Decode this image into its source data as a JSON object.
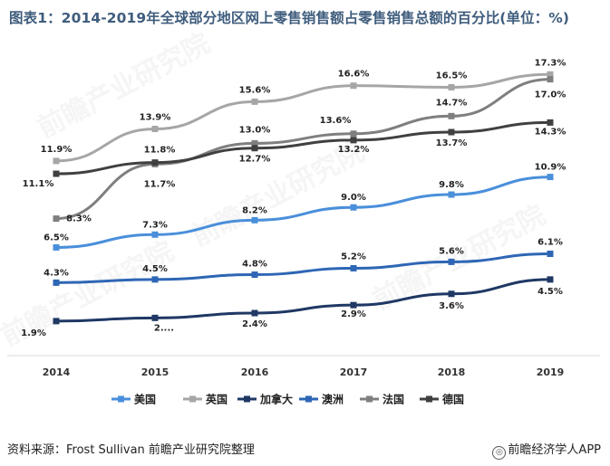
{
  "title": "图表1：2014-2019年全球部分地区网上零售销售额占零售销售总额的百分比(单位：%)",
  "source": "资料来源：Frost Sullivan 前瞻产业研究院整理",
  "brand": "前瞻经济学人APP",
  "brand_icon": "qianzhan-logo-icon",
  "watermark_text": "前瞻产业研究院",
  "chart_data": {
    "type": "line",
    "title": "图表1：2014-2019年全球部分地区网上零售销售额占零售销售总额的百分比(单位：%)",
    "x": [
      "2014",
      "2015",
      "2016",
      "2017",
      "2018",
      "2019"
    ],
    "ylim": [
      0,
      20
    ],
    "grid": false,
    "legend_position": "bottom",
    "series": [
      {
        "name": "美国",
        "color": "#4a8fdb",
        "values": [
          6.5,
          7.3,
          8.2,
          9.0,
          9.8,
          10.9
        ],
        "labels": [
          "6.5%",
          "7.3%",
          "8.2%",
          "9.0%",
          "9.8%",
          "10.9%"
        ]
      },
      {
        "name": "英国",
        "color": "#a6a6a6",
        "values": [
          11.9,
          13.9,
          15.6,
          16.6,
          16.5,
          17.3
        ],
        "labels": [
          "11.9%",
          "13.9%",
          "15.6%",
          "16.6%",
          "16.5%",
          "17.3%"
        ]
      },
      {
        "name": "加拿大",
        "color": "#1f3864",
        "values": [
          1.9,
          2.1,
          2.4,
          2.9,
          3.6,
          4.5
        ],
        "labels": [
          "1.9%",
          "2....",
          "2.4%",
          "2.9%",
          "3.6%",
          "4.5%"
        ]
      },
      {
        "name": "澳洲",
        "color": "#2e66b5",
        "values": [
          4.3,
          4.5,
          4.8,
          5.2,
          5.6,
          6.1
        ],
        "labels": [
          "4.3%",
          "4.5%",
          "4.8%",
          "5.2%",
          "5.6%",
          "6.1%"
        ]
      },
      {
        "name": "法国",
        "color": "#7f7f7f",
        "values": [
          8.3,
          11.7,
          13.0,
          13.6,
          14.7,
          17.0
        ],
        "labels": [
          "8.3%",
          "11.7%",
          "13.0%",
          "13.6%",
          "14.7%",
          "17.0%"
        ]
      },
      {
        "name": "德国",
        "color": "#404040",
        "values": [
          11.1,
          11.8,
          12.7,
          13.2,
          13.7,
          14.3
        ],
        "labels": [
          "11.1%",
          "11.8%",
          "12.7%",
          "13.2%",
          "13.7%",
          "14.3%"
        ]
      }
    ]
  }
}
